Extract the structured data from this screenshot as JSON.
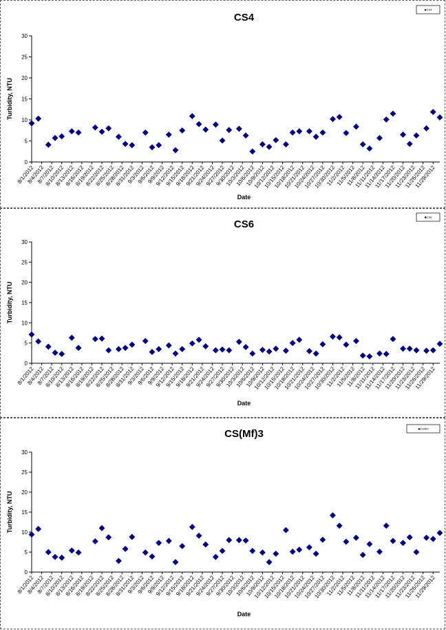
{
  "chart_data": [
    {
      "type": "scatter",
      "title": "CS4",
      "xlabel": "Date",
      "ylabel": "Turbidity, NTU",
      "ylim": [
        0,
        30
      ],
      "yticks": [
        0,
        5,
        10,
        15,
        20,
        25,
        30
      ],
      "legend": {
        "placement": "top-right",
        "text": "◆CS4"
      },
      "marker_color": "#000080",
      "xlim": [
        "2012-08-01",
        "2012-12-01"
      ],
      "xticks": [
        "8/1/2012",
        "8/4/2012",
        "8/7/2012",
        "8/10/2012",
        "8/13/2012",
        "8/16/2012",
        "8/19/2012",
        "8/22/2012",
        "8/25/2012",
        "8/28/2012",
        "8/31/2012",
        "9/3/2012",
        "9/6/2012",
        "9/9/2012",
        "9/12/2012",
        "9/15/2012",
        "9/18/2012",
        "9/21/2012",
        "9/24/2012",
        "9/27/2012",
        "9/30/2012",
        "10/3/2012",
        "10/6/2012",
        "10/9/2012",
        "10/12/2012",
        "10/15/2012",
        "10/18/2012",
        "10/21/2012",
        "10/24/2012",
        "10/27/2012",
        "10/30/2012",
        "11/2/2012",
        "11/5/2012",
        "11/8/2012",
        "11/11/2012",
        "11/14/2012",
        "11/17/2012",
        "11/20/2012",
        "11/23/2012",
        "11/26/2012",
        "11/29/2012"
      ],
      "points": [
        {
          "x": "2012-08-01",
          "y": 9.2
        },
        {
          "x": "2012-08-03",
          "y": 10.3
        },
        {
          "x": "2012-08-06",
          "y": 4.1
        },
        {
          "x": "2012-08-08",
          "y": 5.7
        },
        {
          "x": "2012-08-10",
          "y": 6.1
        },
        {
          "x": "2012-08-13",
          "y": 7.3
        },
        {
          "x": "2012-08-15",
          "y": 7.0
        },
        {
          "x": "2012-08-20",
          "y": 8.2
        },
        {
          "x": "2012-08-22",
          "y": 7.2
        },
        {
          "x": "2012-08-24",
          "y": 8.0
        },
        {
          "x": "2012-08-27",
          "y": 6.0
        },
        {
          "x": "2012-08-29",
          "y": 4.3
        },
        {
          "x": "2012-08-31",
          "y": 4.0
        },
        {
          "x": "2012-09-04",
          "y": 7.0
        },
        {
          "x": "2012-09-06",
          "y": 3.5
        },
        {
          "x": "2012-09-08",
          "y": 4.0
        },
        {
          "x": "2012-09-11",
          "y": 6.5
        },
        {
          "x": "2012-09-13",
          "y": 2.8
        },
        {
          "x": "2012-09-15",
          "y": 7.5
        },
        {
          "x": "2012-09-18",
          "y": 10.9
        },
        {
          "x": "2012-09-20",
          "y": 9.0
        },
        {
          "x": "2012-09-22",
          "y": 7.7
        },
        {
          "x": "2012-09-25",
          "y": 8.9
        },
        {
          "x": "2012-09-27",
          "y": 5.1
        },
        {
          "x": "2012-09-29",
          "y": 7.6
        },
        {
          "x": "2012-10-02",
          "y": 7.9
        },
        {
          "x": "2012-10-04",
          "y": 6.3
        },
        {
          "x": "2012-10-06",
          "y": 2.5
        },
        {
          "x": "2012-10-09",
          "y": 4.2
        },
        {
          "x": "2012-10-11",
          "y": 3.6
        },
        {
          "x": "2012-10-13",
          "y": 5.2
        },
        {
          "x": "2012-10-16",
          "y": 4.2
        },
        {
          "x": "2012-10-18",
          "y": 7.0
        },
        {
          "x": "2012-10-20",
          "y": 7.3
        },
        {
          "x": "2012-10-23",
          "y": 7.3
        },
        {
          "x": "2012-10-25",
          "y": 6.0
        },
        {
          "x": "2012-10-27",
          "y": 7.0
        },
        {
          "x": "2012-10-30",
          "y": 10.2
        },
        {
          "x": "2012-11-01",
          "y": 10.7
        },
        {
          "x": "2012-11-03",
          "y": 6.9
        },
        {
          "x": "2012-11-06",
          "y": 8.4
        },
        {
          "x": "2012-11-08",
          "y": 4.2
        },
        {
          "x": "2012-11-10",
          "y": 3.2
        },
        {
          "x": "2012-11-13",
          "y": 5.7
        },
        {
          "x": "2012-11-15",
          "y": 10.1
        },
        {
          "x": "2012-11-17",
          "y": 11.5
        },
        {
          "x": "2012-11-20",
          "y": 6.5
        },
        {
          "x": "2012-11-22",
          "y": 4.3
        },
        {
          "x": "2012-11-24",
          "y": 6.3
        },
        {
          "x": "2012-11-27",
          "y": 8.0
        },
        {
          "x": "2012-11-29",
          "y": 11.9
        },
        {
          "x": "2012-12-01",
          "y": 10.6
        }
      ]
    },
    {
      "type": "scatter",
      "title": "CS6",
      "xlabel": "Date",
      "ylabel": "Turbidity, NTU",
      "ylim": [
        0,
        30
      ],
      "yticks": [
        0,
        5,
        10,
        15,
        20,
        25,
        30
      ],
      "legend": {
        "placement": "top-right",
        "text": "◆CS6"
      },
      "marker_color": "#000080",
      "xlim": [
        "2012-08-01",
        "2012-12-01"
      ],
      "xticks": [
        "8/1/2012",
        "8/4/2012",
        "8/7/2012",
        "8/10/2012",
        "8/13/2012",
        "8/16/2012",
        "8/19/2012",
        "8/22/2012",
        "8/25/2012",
        "8/28/2012",
        "8/31/2012",
        "9/3/2012",
        "9/6/2012",
        "9/9/2012",
        "9/12/2012",
        "9/15/2012",
        "9/18/2012",
        "9/21/2012",
        "9/24/2012",
        "9/27/2012",
        "9/30/2012",
        "10/3/2012",
        "10/6/2012",
        "10/9/2012",
        "10/12/2012",
        "10/15/2012",
        "10/18/2012",
        "10/21/2012",
        "10/24/2012",
        "10/27/2012",
        "10/30/2012",
        "11/2/2012",
        "11/5/2012",
        "11/8/2012",
        "11/11/2012",
        "11/14/2012",
        "11/17/2012",
        "11/20/2012",
        "11/23/2012",
        "11/26/2012",
        "11/29/2012"
      ],
      "points": [
        {
          "x": "2012-08-01",
          "y": 7.1
        },
        {
          "x": "2012-08-03",
          "y": 5.4
        },
        {
          "x": "2012-08-06",
          "y": 4.1
        },
        {
          "x": "2012-08-08",
          "y": 2.6
        },
        {
          "x": "2012-08-10",
          "y": 2.3
        },
        {
          "x": "2012-08-13",
          "y": 6.3
        },
        {
          "x": "2012-08-15",
          "y": 3.8
        },
        {
          "x": "2012-08-20",
          "y": 6.0
        },
        {
          "x": "2012-08-22",
          "y": 6.1
        },
        {
          "x": "2012-08-24",
          "y": 3.2
        },
        {
          "x": "2012-08-27",
          "y": 3.5
        },
        {
          "x": "2012-08-29",
          "y": 3.8
        },
        {
          "x": "2012-08-31",
          "y": 4.6
        },
        {
          "x": "2012-09-04",
          "y": 5.5
        },
        {
          "x": "2012-09-06",
          "y": 2.8
        },
        {
          "x": "2012-09-08",
          "y": 3.5
        },
        {
          "x": "2012-09-11",
          "y": 4.4
        },
        {
          "x": "2012-09-13",
          "y": 2.4
        },
        {
          "x": "2012-09-15",
          "y": 3.5
        },
        {
          "x": "2012-09-18",
          "y": 4.9
        },
        {
          "x": "2012-09-20",
          "y": 5.8
        },
        {
          "x": "2012-09-22",
          "y": 4.2
        },
        {
          "x": "2012-09-25",
          "y": 3.2
        },
        {
          "x": "2012-09-27",
          "y": 3.4
        },
        {
          "x": "2012-09-29",
          "y": 3.2
        },
        {
          "x": "2012-10-02",
          "y": 5.3
        },
        {
          "x": "2012-10-04",
          "y": 4.0
        },
        {
          "x": "2012-10-06",
          "y": 2.4
        },
        {
          "x": "2012-10-09",
          "y": 3.3
        },
        {
          "x": "2012-10-11",
          "y": 2.9
        },
        {
          "x": "2012-10-13",
          "y": 3.6
        },
        {
          "x": "2012-10-16",
          "y": 3.1
        },
        {
          "x": "2012-10-18",
          "y": 5.0
        },
        {
          "x": "2012-10-20",
          "y": 5.8
        },
        {
          "x": "2012-10-23",
          "y": 3.0
        },
        {
          "x": "2012-10-25",
          "y": 2.4
        },
        {
          "x": "2012-10-27",
          "y": 4.7
        },
        {
          "x": "2012-10-30",
          "y": 6.6
        },
        {
          "x": "2012-11-01",
          "y": 6.4
        },
        {
          "x": "2012-11-03",
          "y": 4.6
        },
        {
          "x": "2012-11-06",
          "y": 5.5
        },
        {
          "x": "2012-11-08",
          "y": 1.9
        },
        {
          "x": "2012-11-10",
          "y": 1.7
        },
        {
          "x": "2012-11-13",
          "y": 2.4
        },
        {
          "x": "2012-11-15",
          "y": 2.3
        },
        {
          "x": "2012-11-17",
          "y": 6.0
        },
        {
          "x": "2012-11-20",
          "y": 3.6
        },
        {
          "x": "2012-11-22",
          "y": 3.6
        },
        {
          "x": "2012-11-24",
          "y": 3.2
        },
        {
          "x": "2012-11-27",
          "y": 3.1
        },
        {
          "x": "2012-11-29",
          "y": 3.2
        },
        {
          "x": "2012-12-01",
          "y": 4.8
        }
      ]
    },
    {
      "type": "scatter",
      "title": "CS(Mf)3",
      "xlabel": "Date",
      "ylabel": "Turbidity, NTU",
      "ylim": [
        0,
        30
      ],
      "yticks": [
        0,
        5,
        10,
        15,
        20,
        25,
        30
      ],
      "legend": {
        "placement": "top-right",
        "text": "◆CSMf3"
      },
      "marker_color": "#000080",
      "xlim": [
        "2012-08-01",
        "2012-12-01"
      ],
      "xticks": [
        "8/1/2012",
        "8/4/2012",
        "8/7/2012",
        "8/10/2012",
        "8/13/2012",
        "8/16/2012",
        "8/19/2012",
        "8/22/2012",
        "8/25/2012",
        "8/28/2012",
        "8/31/2012",
        "9/3/2012",
        "9/6/2012",
        "9/9/2012",
        "9/12/2012",
        "9/15/2012",
        "9/18/2012",
        "9/21/2012",
        "9/24/2012",
        "9/27/2012",
        "9/30/2012",
        "10/3/2012",
        "10/6/2012",
        "10/9/2012",
        "10/12/2012",
        "10/15/2012",
        "10/18/2012",
        "10/21/2012",
        "10/24/2012",
        "10/27/2012",
        "10/30/2012",
        "11/2/2012",
        "11/5/2012",
        "11/8/2012",
        "11/11/2012",
        "11/14/2012",
        "11/17/2012",
        "11/20/2012",
        "11/23/2012",
        "11/26/2012",
        "11/29/2012"
      ],
      "points": [
        {
          "x": "2012-08-01",
          "y": 9.4
        },
        {
          "x": "2012-08-03",
          "y": 10.8
        },
        {
          "x": "2012-08-06",
          "y": 5.0
        },
        {
          "x": "2012-08-08",
          "y": 3.8
        },
        {
          "x": "2012-08-10",
          "y": 3.6
        },
        {
          "x": "2012-08-13",
          "y": 5.4
        },
        {
          "x": "2012-08-15",
          "y": 4.9
        },
        {
          "x": "2012-08-20",
          "y": 7.7
        },
        {
          "x": "2012-08-22",
          "y": 11.0
        },
        {
          "x": "2012-08-24",
          "y": 8.7
        },
        {
          "x": "2012-08-27",
          "y": 2.8
        },
        {
          "x": "2012-08-29",
          "y": 5.8
        },
        {
          "x": "2012-08-31",
          "y": 8.8
        },
        {
          "x": "2012-09-04",
          "y": 4.9
        },
        {
          "x": "2012-09-06",
          "y": 3.9
        },
        {
          "x": "2012-09-08",
          "y": 7.3
        },
        {
          "x": "2012-09-11",
          "y": 7.8
        },
        {
          "x": "2012-09-13",
          "y": 2.5
        },
        {
          "x": "2012-09-15",
          "y": 6.5
        },
        {
          "x": "2012-09-18",
          "y": 11.3
        },
        {
          "x": "2012-09-20",
          "y": 9.1
        },
        {
          "x": "2012-09-22",
          "y": 6.9
        },
        {
          "x": "2012-09-25",
          "y": 3.8
        },
        {
          "x": "2012-09-27",
          "y": 5.3
        },
        {
          "x": "2012-09-29",
          "y": 8.0
        },
        {
          "x": "2012-10-02",
          "y": 8.0
        },
        {
          "x": "2012-10-04",
          "y": 7.9
        },
        {
          "x": "2012-10-06",
          "y": 5.3
        },
        {
          "x": "2012-10-09",
          "y": 4.9
        },
        {
          "x": "2012-10-11",
          "y": 2.5
        },
        {
          "x": "2012-10-13",
          "y": 4.6
        },
        {
          "x": "2012-10-16",
          "y": 10.5
        },
        {
          "x": "2012-10-18",
          "y": 5.1
        },
        {
          "x": "2012-10-20",
          "y": 5.6
        },
        {
          "x": "2012-10-23",
          "y": 6.2
        },
        {
          "x": "2012-10-25",
          "y": 4.6
        },
        {
          "x": "2012-10-27",
          "y": 8.1
        },
        {
          "x": "2012-10-30",
          "y": 14.2
        },
        {
          "x": "2012-11-01",
          "y": 11.6
        },
        {
          "x": "2012-11-03",
          "y": 7.6
        },
        {
          "x": "2012-11-06",
          "y": 8.6
        },
        {
          "x": "2012-11-08",
          "y": 4.3
        },
        {
          "x": "2012-11-10",
          "y": 7.0
        },
        {
          "x": "2012-11-13",
          "y": 5.1
        },
        {
          "x": "2012-11-15",
          "y": 11.6
        },
        {
          "x": "2012-11-17",
          "y": 7.8
        },
        {
          "x": "2012-11-20",
          "y": 7.3
        },
        {
          "x": "2012-11-22",
          "y": 8.7
        },
        {
          "x": "2012-11-24",
          "y": 5.0
        },
        {
          "x": "2012-11-27",
          "y": 8.6
        },
        {
          "x": "2012-11-29",
          "y": 8.3
        },
        {
          "x": "2012-12-01",
          "y": 9.8
        }
      ]
    }
  ]
}
